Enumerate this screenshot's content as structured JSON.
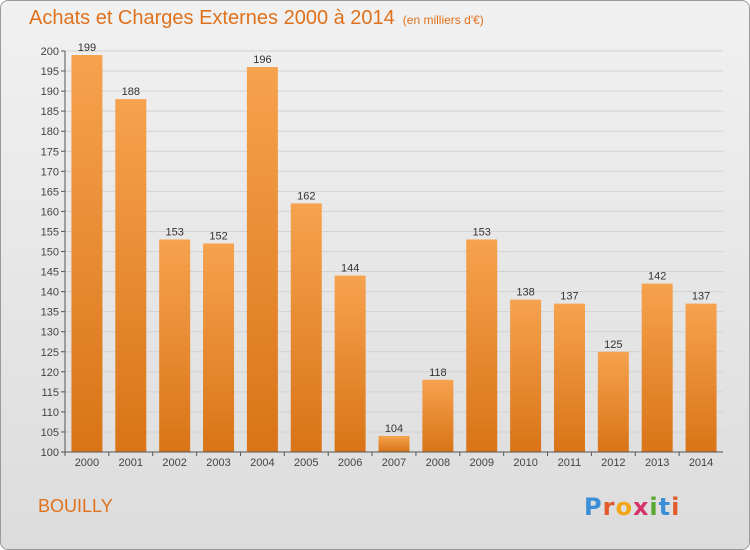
{
  "title": "Achats et Charges Externes 2000 à 2014",
  "subtitle": "(en milliers d'€)",
  "location": "BOUILLY",
  "logo": {
    "text": "Proxiti",
    "letters": [
      "P",
      "r",
      "o",
      "x",
      "i",
      "t",
      "i"
    ],
    "colors": [
      "#3a8fd8",
      "#e25b2a",
      "#f2a516",
      "#d6336c",
      "#5aa832",
      "#3a8fd8",
      "#e25b2a"
    ]
  },
  "colors": {
    "bar_top": "#f6a24e",
    "bar_bottom": "#d97417",
    "accent": "#e0711c",
    "grid": "#d2d2d2"
  },
  "chart_data": {
    "type": "bar",
    "categories": [
      "2000",
      "2001",
      "2002",
      "2003",
      "2004",
      "2005",
      "2006",
      "2007",
      "2008",
      "2009",
      "2010",
      "2011",
      "2012",
      "2013",
      "2014"
    ],
    "values": [
      199,
      188,
      153,
      152,
      196,
      162,
      144,
      104,
      118,
      153,
      138,
      137,
      125,
      142,
      137
    ],
    "ylim": [
      100,
      200
    ],
    "ytick_step": 5,
    "grid": true,
    "data_labels": true
  }
}
